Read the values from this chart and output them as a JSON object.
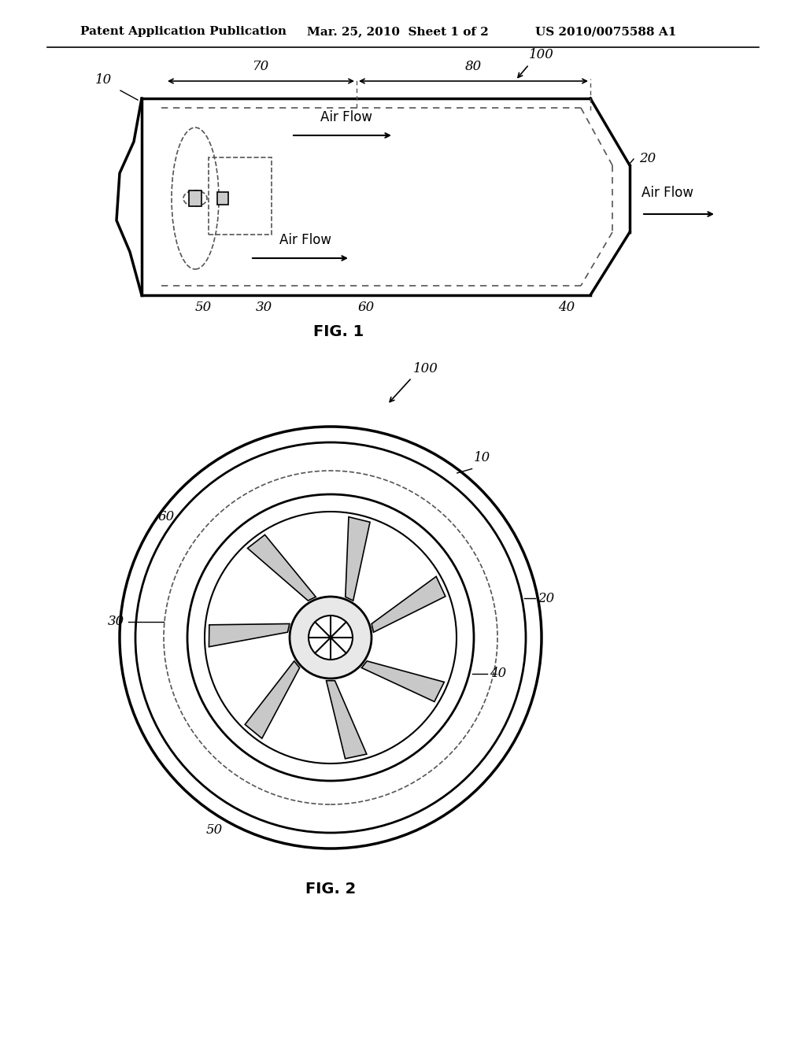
{
  "title_left": "Patent Application Publication",
  "title_mid": "Mar. 25, 2010  Sheet 1 of 2",
  "title_right": "US 2010/0075588 A1",
  "fig1_caption": "FIG. 1",
  "fig2_caption": "FIG. 2",
  "bg_color": "#ffffff",
  "line_color": "#000000",
  "dashed_color": "#555555",
  "label_color": "#000000",
  "header_fontsize": 11,
  "label_fontsize": 12,
  "italic_fontsize": 12
}
